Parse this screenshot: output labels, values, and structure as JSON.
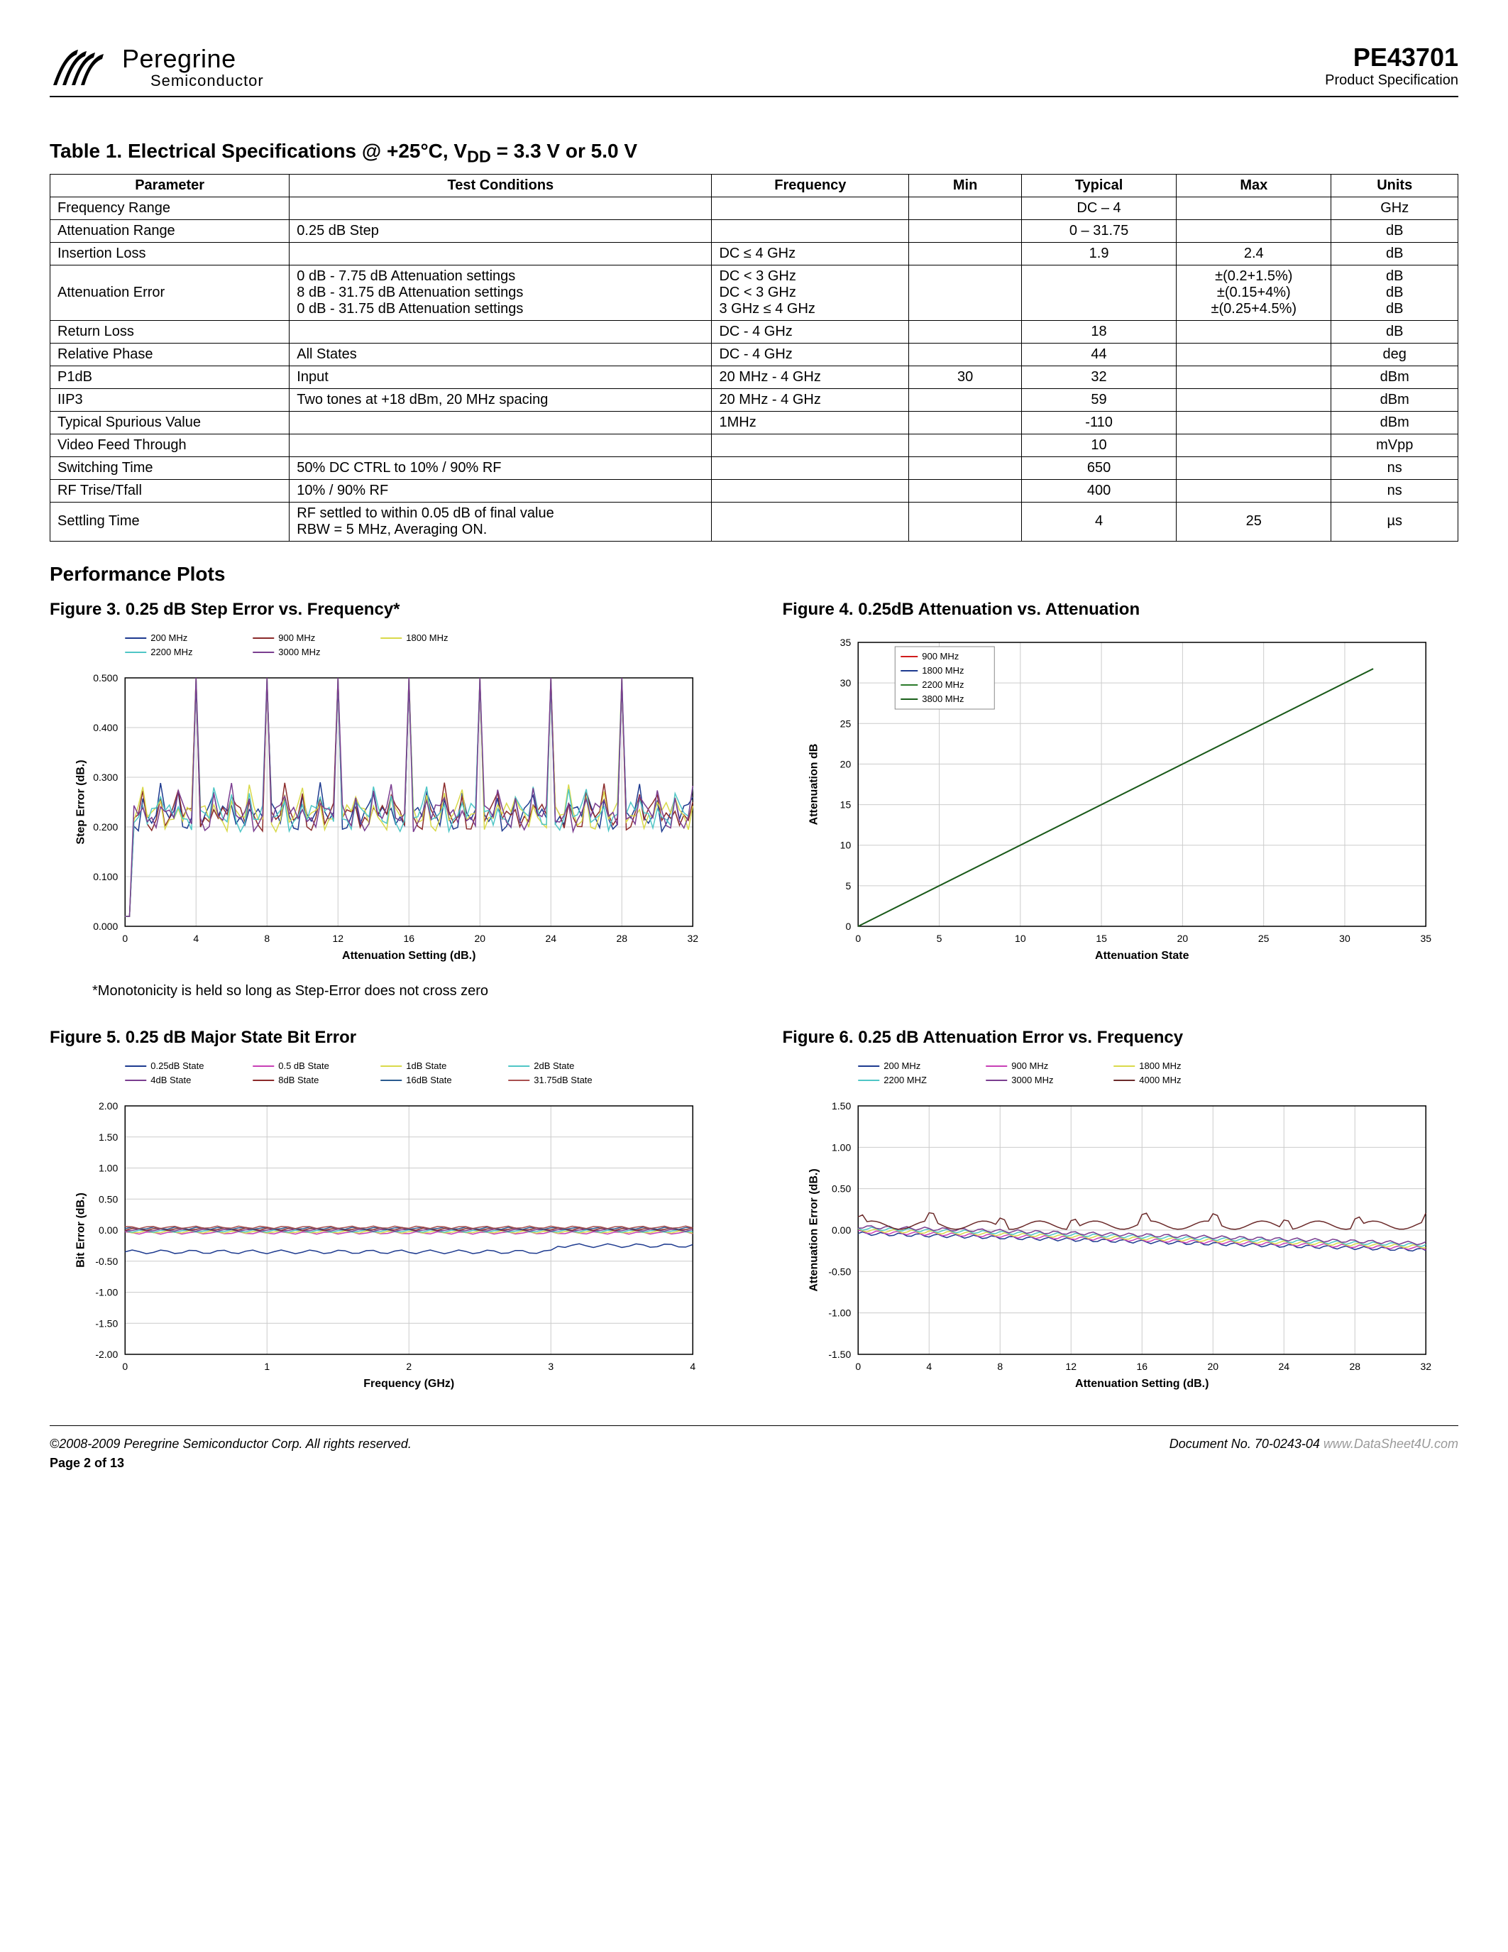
{
  "header": {
    "company_name": "Peregrine",
    "company_sub": "Semiconductor",
    "part_number": "PE43701",
    "spec_label": "Product Specification"
  },
  "table": {
    "title_prefix": "Table 1. Electrical Specifications @ +25°C, V",
    "title_sub": "DD",
    "title_suffix": " = 3.3 V or 5.0 V",
    "columns": [
      "Parameter",
      "Test Conditions",
      "Frequency",
      "Min",
      "Typical",
      "Max",
      "Units"
    ],
    "rows": [
      {
        "p": "Frequency Range",
        "tc": "",
        "f": "",
        "min": "",
        "typ": "DC – 4",
        "max": "",
        "u": "GHz"
      },
      {
        "p": "Attenuation Range",
        "tc": "0.25 dB Step",
        "f": "",
        "min": "",
        "typ": "0 – 31.75",
        "max": "",
        "u": "dB"
      },
      {
        "p": "Insertion Loss",
        "tc": "",
        "f": "DC  ≤ 4 GHz",
        "min": "",
        "typ": "1.9",
        "max": "2.4",
        "u": "dB"
      },
      {
        "p": "Attenuation Error",
        "tc": "0 dB - 7.75 dB Attenuation settings\n8 dB - 31.75 dB Attenuation settings\n0 dB - 31.75 dB Attenuation settings",
        "f": "DC < 3 GHz\nDC < 3 GHz\n3 GHz ≤ 4 GHz",
        "min": "",
        "typ": "",
        "max": "±(0.2+1.5%)\n±(0.15+4%)\n±(0.25+4.5%)",
        "u": "dB\ndB\ndB"
      },
      {
        "p": "Return Loss",
        "tc": "",
        "f": "DC - 4 GHz",
        "min": "",
        "typ": "18",
        "max": "",
        "u": "dB"
      },
      {
        "p": "Relative Phase",
        "tc": "All States",
        "f": "DC - 4 GHz",
        "min": "",
        "typ": "44",
        "max": "",
        "u": "deg"
      },
      {
        "p": "P1dB",
        "tc": "Input",
        "f": "20 MHz - 4 GHz",
        "min": "30",
        "typ": "32",
        "max": "",
        "u": "dBm"
      },
      {
        "p": "IIP3",
        "tc": "Two tones at +18 dBm, 20 MHz spacing",
        "f": "20 MHz - 4 GHz",
        "min": "",
        "typ": "59",
        "max": "",
        "u": "dBm"
      },
      {
        "p": "Typical Spurious Value",
        "tc": "",
        "f": "1MHz",
        "min": "",
        "typ": "-110",
        "max": "",
        "u": "dBm"
      },
      {
        "p": "Video Feed Through",
        "tc": "",
        "f": "",
        "min": "",
        "typ": "10",
        "max": "",
        "u": "mVpp"
      },
      {
        "p": "Switching Time",
        "tc": "50% DC CTRL to 10% / 90% RF",
        "f": "",
        "min": "",
        "typ": "650",
        "max": "",
        "u": "ns"
      },
      {
        "p": "RF Trise/Tfall",
        "tc": "10% / 90% RF",
        "f": "",
        "min": "",
        "typ": "400",
        "max": "",
        "u": "ns"
      },
      {
        "p": "Settling Time",
        "tc": "RF settled to within 0.05 dB of final value\nRBW = 5 MHz, Averaging ON.",
        "f": "",
        "min": "",
        "typ": "4",
        "max": "25",
        "u": "µs"
      }
    ]
  },
  "perf_plots_title": "Performance Plots",
  "fig3": {
    "title": "Figure 3. 0.25 dB Step Error vs. Frequency*",
    "xlabel": "Attenuation Setting (dB.)",
    "ylabel": "Step Error (dB.)",
    "xlim": [
      0,
      32
    ],
    "xticks": [
      0.0,
      4.0,
      8.0,
      12.0,
      16.0,
      20.0,
      24.0,
      28.0,
      32.0
    ],
    "ylim": [
      0,
      0.5
    ],
    "yticks": [
      0.0,
      0.1,
      0.2,
      0.3,
      0.4,
      0.5
    ],
    "legend": [
      {
        "label": "200 MHz",
        "color": "#1d3a8f"
      },
      {
        "label": "900 MHz",
        "color": "#8b2a2a"
      },
      {
        "label": "1800 MHz",
        "color": "#d9d94a"
      },
      {
        "label": "2200 MHz",
        "color": "#4fc6c6"
      },
      {
        "label": "3000 MHz",
        "color": "#7a3d8f"
      }
    ],
    "background_color": "#ffffff",
    "grid_color": "#cccccc",
    "peak_level": 0.22,
    "spike_peaks_x": [
      4,
      8,
      12,
      16,
      20,
      24,
      28
    ],
    "spike_height": 0.45
  },
  "fig3_footnote": "*Monotonicity is held so long as Step-Error does not cross zero",
  "fig4": {
    "title": "Figure 4. 0.25dB Attenuation vs. Attenuation",
    "xlabel": "Attenuation  State",
    "ylabel": "Attenuation  dB",
    "xlim": [
      0,
      35
    ],
    "xticks": [
      0,
      5,
      10,
      15,
      20,
      25,
      30,
      35
    ],
    "ylim": [
      0,
      35
    ],
    "yticks": [
      0,
      5,
      10,
      15,
      20,
      25,
      30,
      35
    ],
    "legend": [
      {
        "label": "900 MHz",
        "color": "#d01c1c"
      },
      {
        "label": "1800 MHz",
        "color": "#1d3a8f"
      },
      {
        "label": "2200 MHz",
        "color": "#2a7a2a"
      },
      {
        "label": "3800 MHz",
        "color": "#1a5f1a"
      }
    ],
    "line_start": [
      0,
      0
    ],
    "line_end": [
      31.75,
      31.75
    ],
    "background_color": "#ffffff",
    "grid_color": "#d0d0d0"
  },
  "fig5": {
    "title": "Figure 5.  0.25 dB Major State Bit Error",
    "xlabel": "Frequency (GHz)",
    "ylabel": "Bit Error (dB.)",
    "xlim": [
      0,
      4
    ],
    "xticks": [
      0.0,
      1.0,
      2.0,
      3.0,
      4.0
    ],
    "ylim": [
      -2,
      2
    ],
    "yticks": [
      -2.0,
      -1.5,
      -1.0,
      -0.5,
      0.0,
      0.5,
      1.0,
      1.5,
      2.0
    ],
    "legend": [
      {
        "label": "0.25dB State",
        "color": "#1d3a8f"
      },
      {
        "label": "0.5 dB State",
        "color": "#c83fb6"
      },
      {
        "label": "1dB State",
        "color": "#d9d94a"
      },
      {
        "label": "2dB State",
        "color": "#4fc6c6"
      },
      {
        "label": "4dB State",
        "color": "#7a3d8f"
      },
      {
        "label": "8dB State",
        "color": "#8b2a2a"
      },
      {
        "label": "16dB State",
        "color": "#2a5a8f"
      },
      {
        "label": "31.75dB State",
        "color": "#a84f4f"
      }
    ],
    "cluster_y": 0.0,
    "outlier_y": -0.35,
    "background_color": "#ffffff",
    "grid_color": "#cccccc"
  },
  "fig6": {
    "title": "Figure 6. 0.25 dB  Attenuation Error vs. Frequency",
    "xlabel": "Attenuation Setting (dB.)",
    "ylabel": "Attenuation Error (dB.)",
    "xlim": [
      0,
      32
    ],
    "xticks": [
      0.0,
      4.0,
      8.0,
      12.0,
      16.0,
      20.0,
      24.0,
      28.0,
      32.0
    ],
    "ylim": [
      -1.5,
      1.5
    ],
    "yticks": [
      -1.5,
      -1.0,
      -0.5,
      0.0,
      0.5,
      1.0,
      1.5
    ],
    "legend": [
      {
        "label": "200 MHz",
        "color": "#1d3a8f"
      },
      {
        "label": "900 MHz",
        "color": "#c83fb6"
      },
      {
        "label": "1800 MHz",
        "color": "#d9d94a"
      },
      {
        "label": "2200 MHZ",
        "color": "#4fc6c6"
      },
      {
        "label": "3000 MHz",
        "color": "#7a3d8f"
      },
      {
        "label": "4000 MHz",
        "color": "#6b2a2a"
      }
    ],
    "cluster_drift_start": 0.0,
    "cluster_drift_end": -0.2,
    "top_series_y": 0.2,
    "background_color": "#ffffff",
    "grid_color": "#cccccc"
  },
  "footer": {
    "copyright": "©2008-2009 Peregrine Semiconductor Corp.  All rights reserved.",
    "doc_no": "Document No. 70-0243-04",
    "watermark": "www.DataSheet4U.com",
    "page": "Page  2 of 13"
  }
}
